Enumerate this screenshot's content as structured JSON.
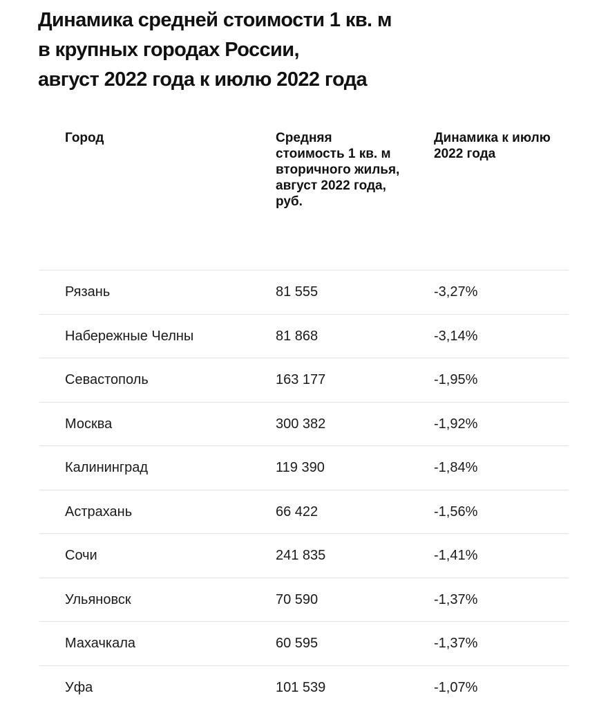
{
  "title": {
    "line1": "Динамика средней стоимости 1 кв. м",
    "line2": "в крупных городах России,",
    "line3": "август 2022 года к июлю 2022 года"
  },
  "table": {
    "headers": [
      "Город",
      "Средняя стоимость 1 кв. м вторичного жилья, август 2022 года, руб.",
      "Динамика к июлю 2022 года"
    ],
    "rows": [
      {
        "city": "Рязань",
        "price": "81 555",
        "change": "-3,27%"
      },
      {
        "city": "Набережные Челны",
        "price": "81 868",
        "change": "-3,14%"
      },
      {
        "city": "Севастополь",
        "price": "163 177",
        "change": "-1,95%"
      },
      {
        "city": "Москва",
        "price": "300 382",
        "change": "-1,92%"
      },
      {
        "city": "Калининград",
        "price": "119 390",
        "change": "-1,84%"
      },
      {
        "city": "Астрахань",
        "price": "66 422",
        "change": "-1,56%"
      },
      {
        "city": "Сочи",
        "price": "241 835",
        "change": "-1,41%"
      },
      {
        "city": "Ульяновск",
        "price": "70 590",
        "change": "-1,37%"
      },
      {
        "city": "Махачкала",
        "price": "60 595",
        "change": "-1,37%"
      },
      {
        "city": "Уфа",
        "price": "101 539",
        "change": "-1,07%"
      }
    ]
  }
}
